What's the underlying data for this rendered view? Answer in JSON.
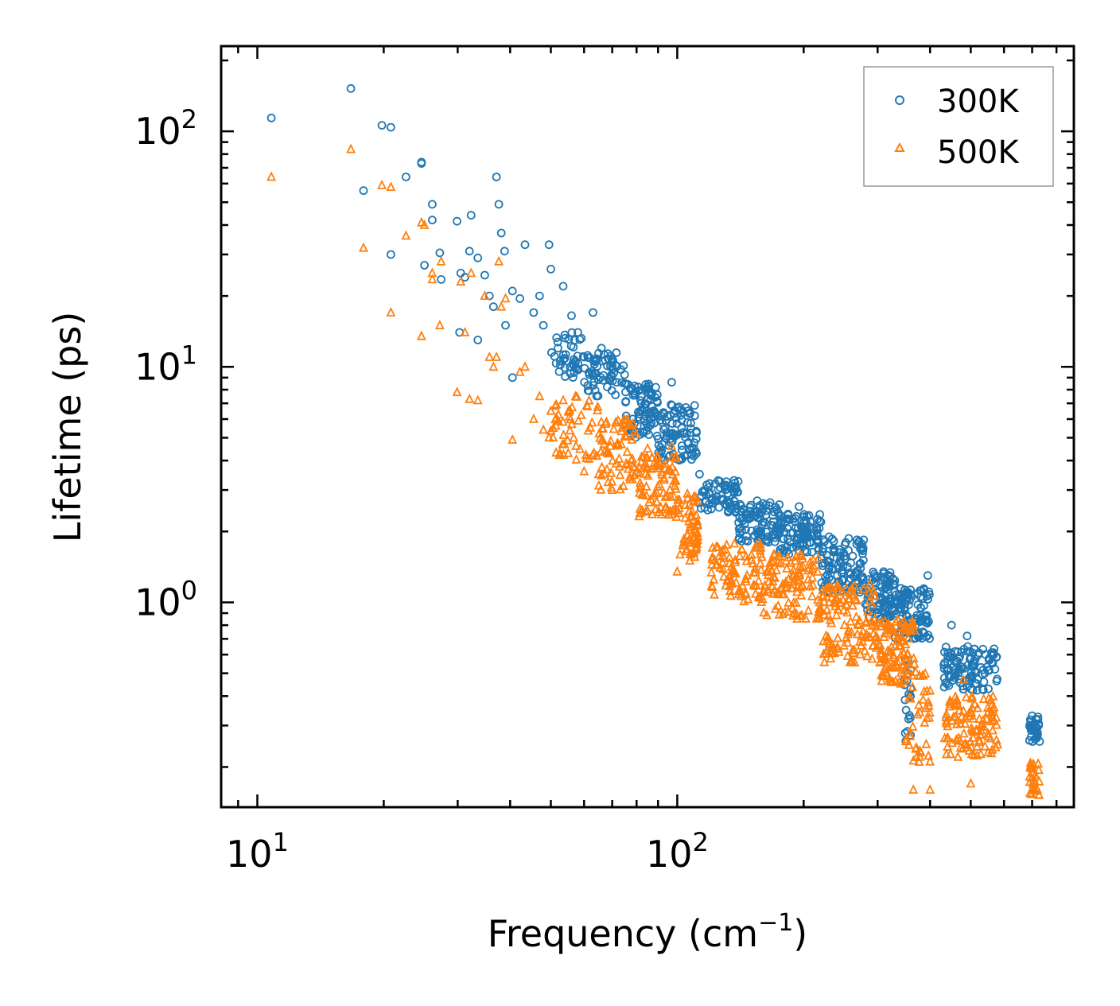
{
  "chart_data": {
    "type": "scatter",
    "title": "",
    "xlabel": "Frequency (cm",
    "xlabel_sup": "−1",
    "xlabel_close": ")",
    "ylabel": "Lifetime (ps)",
    "xscale": "log",
    "yscale": "log",
    "xlim": [
      8.2,
      880
    ],
    "ylim": [
      0.135,
      230
    ],
    "x_ticks": [
      {
        "base": "10",
        "exp": "1",
        "value": 10
      },
      {
        "base": "10",
        "exp": "2",
        "value": 100
      }
    ],
    "y_ticks": [
      {
        "base": "10",
        "exp": "0",
        "value": 1
      },
      {
        "base": "10",
        "exp": "1",
        "value": 10
      },
      {
        "base": "10",
        "exp": "2",
        "value": 100
      }
    ],
    "legend_position": "top-right",
    "series": [
      {
        "name": "300K",
        "marker": "circle",
        "color": "#1f77b4",
        "points": [
          [
            10.8,
            114
          ],
          [
            16.7,
            152
          ],
          [
            17.9,
            56
          ],
          [
            19.8,
            106
          ],
          [
            20.8,
            104
          ],
          [
            20.8,
            30
          ],
          [
            22.6,
            64
          ],
          [
            24.6,
            74
          ],
          [
            24.6,
            73
          ],
          [
            25.0,
            27
          ],
          [
            26.1,
            49
          ],
          [
            26.1,
            42
          ],
          [
            27.2,
            30.5
          ],
          [
            27.4,
            23.5
          ],
          [
            29.9,
            41.5
          ],
          [
            30.3,
            14
          ],
          [
            30.5,
            25
          ],
          [
            31.2,
            24
          ],
          [
            32.0,
            31
          ],
          [
            32.3,
            44
          ],
          [
            33.5,
            29
          ],
          [
            33.5,
            13
          ],
          [
            34.8,
            24.5
          ],
          [
            35.7,
            20
          ],
          [
            36.5,
            18
          ],
          [
            37.1,
            64
          ],
          [
            37.6,
            49
          ],
          [
            38.1,
            37
          ],
          [
            38.8,
            31
          ],
          [
            39.0,
            15
          ],
          [
            40.5,
            21
          ],
          [
            40.5,
            9
          ],
          [
            42.2,
            19.5
          ],
          [
            43.4,
            33
          ],
          [
            45.5,
            17
          ],
          [
            47.0,
            20
          ],
          [
            48.0,
            15
          ],
          [
            49.5,
            33
          ],
          [
            50.0,
            26
          ],
          [
            52.0,
            12
          ],
          [
            53.5,
            22
          ],
          [
            56.0,
            16.5
          ],
          [
            58.0,
            14
          ],
          [
            60.0,
            11
          ],
          [
            63.0,
            17
          ],
          [
            66.0,
            12
          ],
          [
            70.0,
            10.5
          ],
          [
            75.0,
            8.5
          ],
          [
            82.0,
            7.5
          ],
          [
            88.0,
            6.5
          ],
          [
            97.0,
            8.6
          ],
          [
            104.0,
            5.2
          ],
          [
            113.0,
            3.5
          ],
          [
            130.0,
            3.0
          ],
          [
            155.0,
            2.7
          ],
          [
            175.0,
            2.6
          ],
          [
            195.0,
            2.55
          ],
          [
            230.0,
            1.9
          ],
          [
            270.0,
            1.8
          ],
          [
            310.0,
            1.35
          ],
          [
            350.0,
            1.1
          ],
          [
            380.0,
            0.95
          ],
          [
            395.0,
            1.3
          ],
          [
            450.0,
            0.8
          ],
          [
            490.0,
            0.72
          ],
          [
            510.0,
            0.55
          ],
          [
            540.0,
            0.5
          ],
          [
            700.0,
            0.33
          ],
          [
            720.0,
            0.27
          ]
        ],
        "bands": [
          [
            50,
            60,
            9.0,
            14.0,
            40
          ],
          [
            60,
            75,
            7.5,
            11.5,
            60
          ],
          [
            75,
            90,
            5.0,
            8.5,
            80
          ],
          [
            90,
            112,
            4.0,
            7.0,
            90
          ],
          [
            112,
            140,
            2.4,
            3.3,
            70
          ],
          [
            140,
            175,
            1.8,
            2.7,
            90
          ],
          [
            175,
            220,
            1.6,
            2.4,
            100
          ],
          [
            220,
            280,
            1.1,
            1.9,
            110
          ],
          [
            280,
            330,
            0.85,
            1.35,
            90
          ],
          [
            330,
            400,
            0.7,
            1.15,
            110
          ],
          [
            345,
            360,
            0.25,
            0.6,
            20
          ],
          [
            430,
            580,
            0.42,
            0.65,
            110
          ],
          [
            690,
            730,
            0.25,
            0.33,
            30
          ]
        ]
      },
      {
        "name": "500K",
        "marker": "triangle",
        "color": "#ff7f0e",
        "points": [
          [
            10.8,
            64
          ],
          [
            16.7,
            84
          ],
          [
            17.9,
            32
          ],
          [
            19.8,
            59
          ],
          [
            20.8,
            17
          ],
          [
            20.8,
            58
          ],
          [
            22.6,
            36
          ],
          [
            24.6,
            41
          ],
          [
            24.6,
            13.5
          ],
          [
            25.0,
            40
          ],
          [
            26.1,
            25
          ],
          [
            26.1,
            23.5
          ],
          [
            27.2,
            15
          ],
          [
            27.4,
            28
          ],
          [
            29.9,
            7.8
          ],
          [
            30.5,
            23
          ],
          [
            31.2,
            14
          ],
          [
            32.0,
            7.3
          ],
          [
            32.3,
            25
          ],
          [
            33.5,
            7.2
          ],
          [
            34.8,
            20
          ],
          [
            35.7,
            11
          ],
          [
            36.5,
            10
          ],
          [
            37.1,
            11
          ],
          [
            37.6,
            28
          ],
          [
            38.1,
            18
          ],
          [
            39.0,
            19.5
          ],
          [
            40.5,
            4.9
          ],
          [
            42.2,
            9.5
          ],
          [
            43.4,
            10
          ],
          [
            45.5,
            6
          ],
          [
            47.0,
            7.5
          ],
          [
            48.0,
            5.4
          ],
          [
            49.5,
            5.0
          ],
          [
            50.0,
            6.5
          ],
          [
            55.0,
            4.3
          ],
          [
            60.0,
            3.6
          ],
          [
            65.0,
            3.5
          ],
          [
            70.0,
            3.0
          ],
          [
            78.0,
            4.9
          ],
          [
            85.0,
            4.5
          ],
          [
            97.0,
            4.6
          ],
          [
            100.0,
            1.35
          ],
          [
            110.0,
            2.1
          ],
          [
            135.0,
            1.2
          ],
          [
            170.0,
            1.5
          ],
          [
            190.0,
            0.9
          ],
          [
            230.0,
            1.0
          ],
          [
            250.0,
            0.8
          ],
          [
            270.0,
            0.8
          ],
          [
            350.0,
            0.58
          ],
          [
            365.0,
            0.16
          ],
          [
            400.0,
            0.16
          ],
          [
            480.0,
            0.47
          ],
          [
            500.0,
            0.17
          ],
          [
            700.0,
            0.16
          ]
        ],
        "bands": [
          [
            50,
            65,
            4.0,
            7.5,
            50
          ],
          [
            65,
            80,
            3.0,
            6.0,
            70
          ],
          [
            80,
            100,
            2.3,
            4.2,
            90
          ],
          [
            100,
            112,
            1.5,
            3.0,
            60
          ],
          [
            120,
            160,
            1.0,
            1.8,
            90
          ],
          [
            160,
            220,
            0.85,
            1.6,
            110
          ],
          [
            220,
            300,
            0.55,
            1.2,
            120
          ],
          [
            300,
            370,
            0.45,
            0.85,
            100
          ],
          [
            350,
            400,
            0.2,
            0.5,
            40
          ],
          [
            430,
            580,
            0.22,
            0.4,
            110
          ],
          [
            690,
            730,
            0.15,
            0.21,
            30
          ]
        ]
      }
    ]
  }
}
